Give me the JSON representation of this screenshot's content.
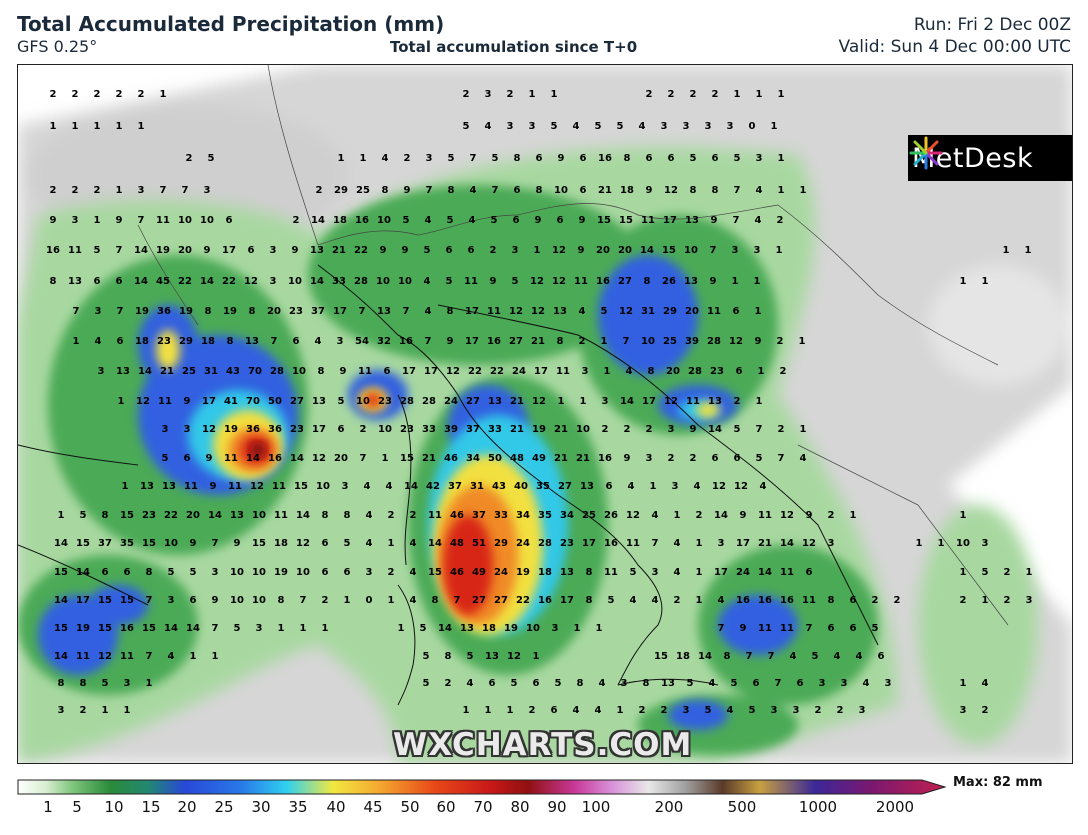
{
  "header": {
    "title": "Total Accumulated Precipitation (mm)",
    "model": "GFS 0.25°",
    "subtitle": "Total accumulation since T+0",
    "run": "Run: Fri 2 Dec 00Z",
    "valid": "Valid: Sun 4 Dec 00:00 UTC"
  },
  "logo": {
    "text": "MetDesk",
    "icon": "metdesk-starburst-icon"
  },
  "watermark": "WXCHARTS.COM",
  "legend": {
    "labels": [
      "1",
      "5",
      "10",
      "15",
      "20",
      "25",
      "30",
      "35",
      "40",
      "45",
      "50",
      "60",
      "70",
      "80",
      "90",
      "100",
      "200",
      "500",
      "1000",
      "2000"
    ],
    "max_label": "Max: 82 mm"
  },
  "colors": {
    "light_green": "#a8d8a0",
    "mid_green": "#4caa56",
    "dark_green": "#2a8a3a",
    "blue": "#3060e0",
    "cyan": "#30c8e8",
    "yellow": "#f2e040",
    "orange": "#f08a28",
    "red": "#d82818",
    "dark_red": "#7a1010",
    "grey": "#cfcfcf"
  },
  "grid_values": [
    [
      "2 2 2 2 2 1",
      52,
      96
    ],
    [
      "2 3 2 1 1",
      465,
      96
    ],
    [
      "2 2 2 2 1 1 1",
      648,
      96
    ],
    [
      "1 1 1 1 1",
      52,
      128
    ],
    [
      "5 4 3 3 5 4 5 5 4 3 3 3 3 0 1",
      465,
      128
    ],
    [
      "2 5",
      188,
      160
    ],
    [
      "1 1 4 2 3 5 7 5 8 6 9 6 16 8 6 6 5 6 5 3 1",
      340,
      160
    ],
    [
      "2 2 2 1 3 7 7 3",
      52,
      192
    ],
    [
      "2 29 25 8 9 7 8 4 7 6 8 10 6 21 18 9 12 8 8 7 4 1 1",
      318,
      192
    ],
    [
      "9 3 1 9 7 11 10 10 6",
      52,
      222
    ],
    [
      "2 14 18 16 10 5 4 5 4 5 6 9 6 9 15 15 11 17 13 9 7 4 2",
      295,
      222
    ],
    [
      "16 11 5 7 14 19 20 9 17 6 3 9 13 21 22 9 9 5 6 6 2 3 1 12 9 20 20 14 15 10 7 3 3 1",
      52,
      252
    ],
    [
      "1 1",
      1005,
      252
    ],
    [
      "8 13 6 6 14 45 22 14 22 12 3 10 14 33 28 10 10 4 5 11 9 5 12 12 11 16 27 8 26 13 9 1 1",
      52,
      283
    ],
    [
      "1 1",
      962,
      283
    ],
    [
      "7 3 7 19 36 19 8 19 8 20 23 37 17 7 13 7 4 8 17 11 12 12 13 4 5 12 31 29 20 11 6 1",
      75,
      313
    ],
    [
      "1 4 6 18 23 29 18 8 13 7 6 4 3 54 32 16 7 9 17 16 27 21 8 2 1 7 10 25 39 28 12 9 2 1",
      75,
      343
    ],
    [
      "3 13 14 21 25 31 43 70 28 10 8 9 11 6 17 17 12 22 22 24 17 11 3 1 4 8 20 28 23 6 1 2",
      100,
      373
    ],
    [
      "1 12 11 9 17 41 70 50 27 13 5 10 23 28 28 24 27 13 21 12 1 1 3 14 17 12 11 13 2 1",
      120,
      403
    ],
    [
      "3 3 12 19 36 36 23 17 6 2 10 23 33 39 37 33 21 19 21 10 2 2 2 3 9 14 5 7 2 1",
      164,
      431
    ],
    [
      "5 6 9 11 14 16 14 12 20 7 1 15 21 46 34 50 48 49 21 21 16 9 3 2 2 6 6 5 7 4",
      164,
      460
    ],
    [
      "1 13 13 11 9 11 12 11 15 10 3 4 4 14 42 37 31 43 40 35 27 13 6 4 1 3 4 12 12 4",
      124,
      488
    ],
    [
      "1 5 8 15 23 22 20 14 13 10 11 14 8 8 4 2 2 11 46 37 33 34 35 34 25 26 12 4 1 2 14 9 11 12 9 2 1",
      60,
      517
    ],
    [
      "1",
      962,
      517
    ],
    [
      "14 15 37 35 15 10 9 7 9 15 18 12 6 5 4 1 4 14 48 51 29 24 28 23 17 16 11 7 4 1 3 17 21 14 12 3",
      60,
      545
    ],
    [
      "1 1 10 3",
      918,
      545
    ],
    [
      "15 14 6 6 8 5 5 3 10 10 19 10 6 6 3 2 4 15 46 49 24 19 18 13 8 11 5 3 4 1 17 24 14 11 6",
      60,
      574
    ],
    [
      "1 5 2 1",
      962,
      574
    ],
    [
      "14 17 15 15 7 3 6 9 10 10 8 7 2 1 0 1 4 8 7 27 27 22 16 17 8 5 4 4 2 1 4 16 16 16 11 8 6 2 2",
      60,
      602
    ],
    [
      "2 1 2 3",
      962,
      602
    ],
    [
      "15 19 15 16 15 14 14 7 5 3 1 1 1",
      60,
      630
    ],
    [
      "1 5 14 13 18 19 10 3 1 1",
      400,
      630
    ],
    [
      "7 9 11 11 7 6 6 5",
      720,
      630
    ],
    [
      "14 11 12 11 7 4 1 1",
      60,
      658
    ],
    [
      "5 8 5 13 12 1",
      425,
      658
    ],
    [
      "15 18 14 8 7 7 4 5 4 4 6",
      660,
      658
    ],
    [
      "8 8 5 3 1",
      60,
      685
    ],
    [
      "5 2 4 6 5 6 5 8 4 3 8 13 5 4 5 6 7 6 3 3 4 3",
      425,
      685
    ],
    [
      "1 4",
      962,
      685
    ],
    [
      "3 2 1 1",
      60,
      712
    ],
    [
      "1 1 1 2 6 4 4 1 2 2 3 5 4 5 3 3 2 2 3",
      465,
      712
    ],
    [
      "3 2",
      962,
      712
    ]
  ]
}
